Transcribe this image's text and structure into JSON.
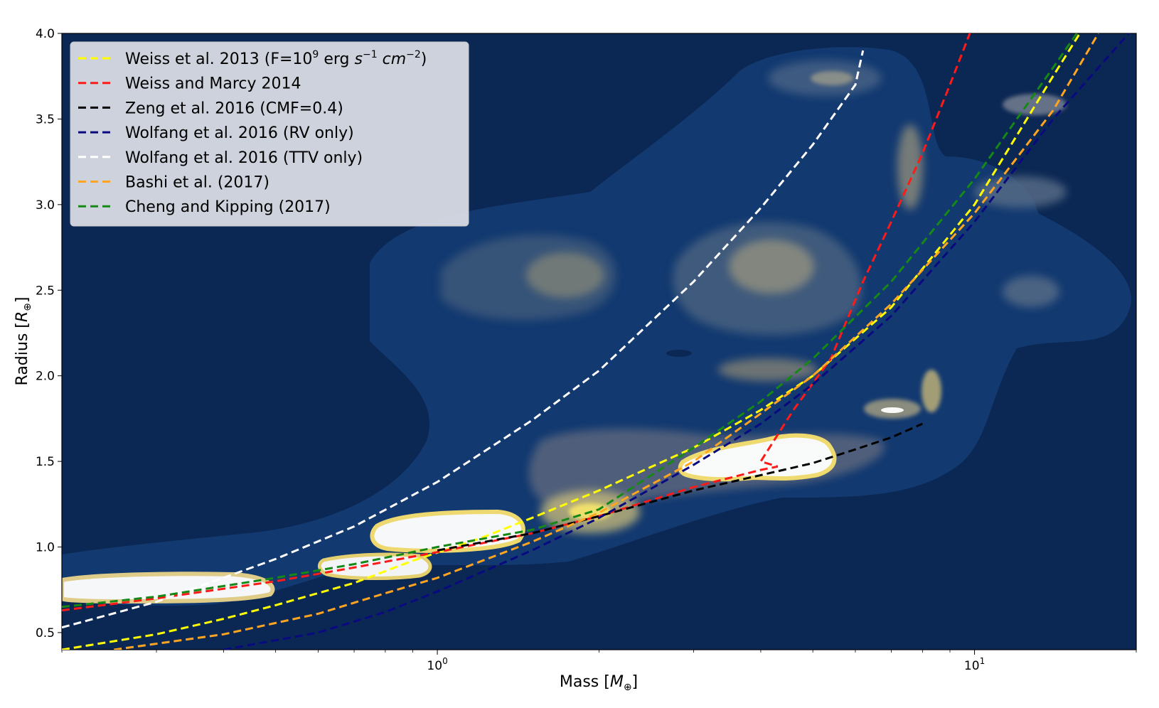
{
  "chart_data": {
    "type": "line",
    "xscale": "log",
    "xlim": [
      0.2,
      20
    ],
    "ylim": [
      0.4,
      4.0
    ],
    "xlabel": "Mass [",
    "xlabel_sym": "M",
    "xlabel_sub": "⊕",
    "xlabel_end": "]",
    "ylabel": "Radius [",
    "ylabel_sym": "R",
    "ylabel_sub": "⊕",
    "ylabel_end": "]",
    "x_ticks": [
      {
        "value": 1,
        "base": "10",
        "exp": "0"
      },
      {
        "value": 10,
        "base": "10",
        "exp": "1"
      }
    ],
    "y_ticks": [
      {
        "value": 0.5,
        "label": "0.5"
      },
      {
        "value": 1.0,
        "label": "1.0"
      },
      {
        "value": 1.5,
        "label": "1.5"
      },
      {
        "value": 2.0,
        "label": "2.0"
      },
      {
        "value": 2.5,
        "label": "2.5"
      },
      {
        "value": 3.0,
        "label": "3.0"
      },
      {
        "value": 3.5,
        "label": "3.5"
      },
      {
        "value": 4.0,
        "label": "4.0"
      }
    ],
    "legend_position": "upper-left",
    "background_color": "#0b2753",
    "series": [
      {
        "name": "Weiss et al. 2013 (F=10",
        "name_sup": "9",
        "name_mid": " erg ",
        "name_s": "s",
        "name_sup2": "−1",
        "name_cm": "cm",
        "name_sup3": "−2",
        "name_end": ")",
        "color": "#ffff00",
        "points": [
          [
            0.2,
            0.4
          ],
          [
            0.3,
            0.49
          ],
          [
            0.4,
            0.58
          ],
          [
            0.5,
            0.66
          ],
          [
            0.7,
            0.79
          ],
          [
            0.9,
            0.92
          ],
          [
            1.2,
            1.05
          ],
          [
            1.5,
            1.17
          ],
          [
            2.0,
            1.33
          ],
          [
            3.0,
            1.58
          ],
          [
            4.0,
            1.8
          ],
          [
            5.0,
            2.0
          ],
          [
            7.0,
            2.4
          ],
          [
            10.0,
            3.0
          ],
          [
            14.0,
            3.75
          ],
          [
            15.7,
            4.0
          ]
        ]
      },
      {
        "name": "Weiss and Marcy 2014",
        "color": "#ff1a1a",
        "points": [
          [
            0.2,
            0.63
          ],
          [
            0.3,
            0.7
          ],
          [
            0.5,
            0.8
          ],
          [
            0.7,
            0.88
          ],
          [
            1.0,
            0.97
          ],
          [
            1.5,
            1.08
          ],
          [
            2.0,
            1.18
          ],
          [
            3.0,
            1.35
          ],
          [
            4.0,
            1.45
          ],
          [
            4.3,
            1.47
          ],
          [
            4.0,
            1.5
          ],
          [
            4.6,
            1.8
          ],
          [
            5.4,
            2.1
          ],
          [
            6.2,
            2.55
          ],
          [
            7.0,
            2.9
          ],
          [
            8.0,
            3.3
          ],
          [
            9.0,
            3.7
          ],
          [
            9.8,
            4.0
          ]
        ]
      },
      {
        "name": "Zeng et al. 2016 (CMF=0.4)",
        "color": "#000000",
        "points": [
          [
            1.0,
            0.98
          ],
          [
            1.5,
            1.08
          ],
          [
            2.0,
            1.18
          ],
          [
            3.0,
            1.33
          ],
          [
            4.0,
            1.42
          ],
          [
            5.0,
            1.49
          ],
          [
            6.0,
            1.57
          ],
          [
            7.0,
            1.64
          ],
          [
            8.0,
            1.72
          ]
        ]
      },
      {
        "name": "Wolfang et al. 2016 (RV only)",
        "color": "#0a0a80",
        "points": [
          [
            0.4,
            0.4
          ],
          [
            0.6,
            0.5
          ],
          [
            0.8,
            0.62
          ],
          [
            1.0,
            0.74
          ],
          [
            1.5,
            0.98
          ],
          [
            2.0,
            1.17
          ],
          [
            3.0,
            1.48
          ],
          [
            4.0,
            1.72
          ],
          [
            5.0,
            1.95
          ],
          [
            7.0,
            2.35
          ],
          [
            10.0,
            2.9
          ],
          [
            14.0,
            3.5
          ],
          [
            20.0,
            4.05
          ]
        ]
      },
      {
        "name": "Wolfang et al. 2016 (TTV only)",
        "color": "#ffffff",
        "points": [
          [
            0.2,
            0.53
          ],
          [
            0.3,
            0.68
          ],
          [
            0.5,
            0.93
          ],
          [
            0.7,
            1.12
          ],
          [
            1.0,
            1.38
          ],
          [
            1.5,
            1.74
          ],
          [
            2.0,
            2.03
          ],
          [
            3.0,
            2.55
          ],
          [
            4.0,
            2.98
          ],
          [
            5.0,
            3.35
          ],
          [
            6.0,
            3.7
          ],
          [
            6.2,
            3.9
          ]
        ]
      },
      {
        "name": "Bashi et al. (2017)",
        "color": "#ffa520",
        "points": [
          [
            0.25,
            0.4
          ],
          [
            0.4,
            0.49
          ],
          [
            0.6,
            0.61
          ],
          [
            0.8,
            0.73
          ],
          [
            1.0,
            0.82
          ],
          [
            1.5,
            1.03
          ],
          [
            2.0,
            1.2
          ],
          [
            3.0,
            1.5
          ],
          [
            4.0,
            1.78
          ],
          [
            5.0,
            2.0
          ],
          [
            7.0,
            2.42
          ],
          [
            10.0,
            2.95
          ],
          [
            14.0,
            3.55
          ],
          [
            17.0,
            4.0
          ]
        ]
      },
      {
        "name": "Cheng and Kipping (2017)",
        "color": "#168816",
        "points": [
          [
            0.2,
            0.65
          ],
          [
            0.3,
            0.71
          ],
          [
            0.5,
            0.82
          ],
          [
            0.7,
            0.9
          ],
          [
            1.0,
            1.0
          ],
          [
            1.5,
            1.1
          ],
          [
            2.0,
            1.22
          ],
          [
            3.0,
            1.58
          ],
          [
            4.0,
            1.85
          ],
          [
            5.0,
            2.1
          ],
          [
            7.0,
            2.55
          ],
          [
            10.0,
            3.15
          ],
          [
            14.0,
            3.8
          ],
          [
            15.5,
            4.0
          ]
        ]
      }
    ]
  }
}
